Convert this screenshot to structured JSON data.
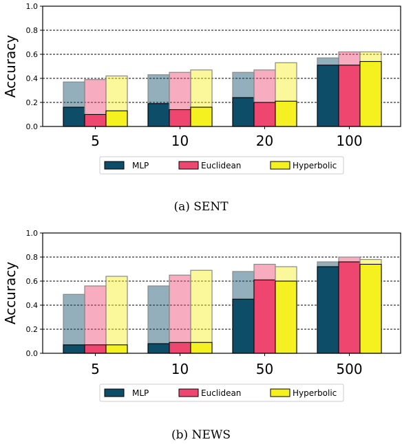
{
  "colors": {
    "MLP": "#0e4d68",
    "Euclidean": "#ef4670",
    "Hyperbolic": "#f5f01f"
  },
  "chart_data": [
    {
      "type": "bar",
      "caption": "(a) SENT",
      "ylabel": "Accuracy",
      "ylim": [
        0,
        1.0
      ],
      "yticks": [
        "0.0",
        "0.2",
        "0.4",
        "0.6",
        "0.8",
        "1.0"
      ],
      "grid": "horizontal dashed at 0.2, 0.4, 0.6, 0.8",
      "legend_position": "below",
      "categories": [
        "5",
        "10",
        "20",
        "100"
      ],
      "series": [
        {
          "name": "MLP",
          "values": [
            0.16,
            0.19,
            0.24,
            0.51
          ],
          "upper": [
            0.37,
            0.43,
            0.45,
            0.57
          ]
        },
        {
          "name": "Euclidean",
          "values": [
            0.1,
            0.14,
            0.2,
            0.51
          ],
          "upper": [
            0.39,
            0.45,
            0.47,
            0.62
          ]
        },
        {
          "name": "Hyperbolic",
          "values": [
            0.13,
            0.16,
            0.21,
            0.54
          ],
          "upper": [
            0.42,
            0.47,
            0.53,
            0.62
          ]
        }
      ]
    },
    {
      "type": "bar",
      "caption": "(b) NEWS",
      "ylabel": "Accuracy",
      "ylim": [
        0,
        1.0
      ],
      "yticks": [
        "0.0",
        "0.2",
        "0.4",
        "0.6",
        "0.8",
        "1.0"
      ],
      "grid": "horizontal dashed at 0.2, 0.4, 0.6, 0.8",
      "legend_position": "below",
      "categories": [
        "5",
        "10",
        "50",
        "500"
      ],
      "series": [
        {
          "name": "MLP",
          "values": [
            0.07,
            0.08,
            0.45,
            0.72
          ],
          "upper": [
            0.49,
            0.56,
            0.68,
            0.76
          ]
        },
        {
          "name": "Euclidean",
          "values": [
            0.07,
            0.09,
            0.61,
            0.76
          ],
          "upper": [
            0.56,
            0.65,
            0.74,
            0.8
          ]
        },
        {
          "name": "Hyperbolic",
          "values": [
            0.07,
            0.09,
            0.6,
            0.74
          ],
          "upper": [
            0.64,
            0.69,
            0.72,
            0.78
          ]
        }
      ]
    }
  ]
}
